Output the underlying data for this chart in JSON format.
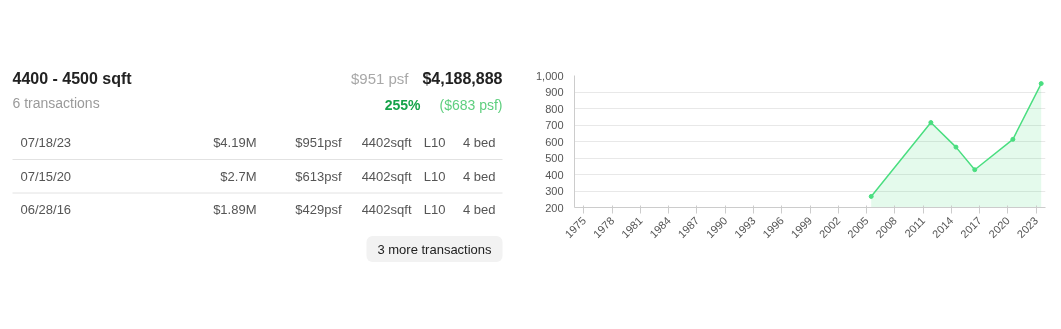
{
  "chart_data": [
    {
      "type": "other",
      "title": "4400 - 4500 sqft",
      "subtitle": "6 transactions",
      "annotations": [
        "$951 psf",
        "$4,188,888",
        "255%",
        "($683 psf)",
        "07/18/23",
        "$4.19M",
        "$951psf",
        "4402sqft",
        "L10",
        "4 bed",
        "07/15/20",
        "$2.7M",
        "$613psf",
        "4402sqft",
        "L10",
        "4 bed",
        "06/28/16",
        "$1.89M",
        "$429psf",
        "4402sqft",
        "L10",
        "4 bed",
        "3 more transactions"
      ]
    },
    {
      "type": "area",
      "x": [
        "2005-07",
        "2011-11",
        "2014-07",
        "2016-06-28",
        "2020-07-15",
        "2023-07-18"
      ],
      "values": [
        267,
        715,
        566,
        429,
        613,
        951
      ],
      "color": "#4ade80",
      "marker": "circle",
      "grid": "y",
      "xlim": [
        "1974",
        "2024"
      ],
      "xticks": [
        "1975",
        "1978",
        "1981",
        "1984",
        "1987",
        "1990",
        "1993",
        "1996",
        "1999",
        "2002",
        "2005",
        "2008",
        "2011",
        "2014",
        "2017",
        "2020",
        "2023"
      ],
      "ylim": [
        200,
        1000
      ],
      "yticks": [
        200,
        300,
        400,
        500,
        600,
        700,
        800,
        900,
        {
          "value": 1000,
          "label": "1,000"
        }
      ]
    }
  ]
}
